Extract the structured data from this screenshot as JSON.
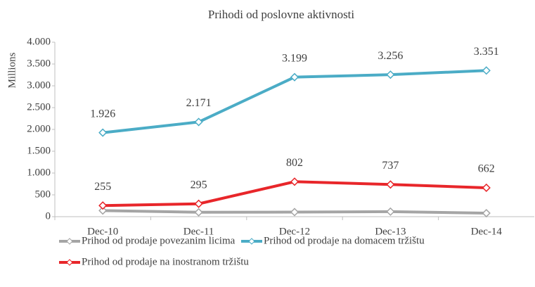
{
  "chart_data": {
    "type": "line",
    "title": "Prihodi od poslovne aktivnosti",
    "y_label": "Millions",
    "categories": [
      "Dec-10",
      "Dec-11",
      "Dec-12",
      "Dec-13",
      "Dec-14"
    ],
    "series": [
      {
        "name": "Prihod od prodaje povezanim licima",
        "color": "#a5a5a5",
        "values": [
          140,
          100,
          105,
          115,
          80
        ]
      },
      {
        "name": "Prihod od prodaje na domacem tržištu",
        "color": "#4bacc6",
        "values": [
          1926,
          2171,
          3199,
          3256,
          3351
        ],
        "value_labels": [
          "1.926",
          "2.171",
          "3.199",
          "3.256",
          "3.351"
        ]
      },
      {
        "name": "Prihod od prodaje na inostranom tržištu",
        "color": "#e8262a",
        "values": [
          255,
          295,
          802,
          737,
          662
        ]
      }
    ],
    "ylim": [
      0,
      4000
    ],
    "yticks": [
      0,
      {
        "value": 500,
        "label": "500"
      },
      {
        "value": 1000,
        "label": "1.000"
      },
      {
        "value": 1500,
        "label": "1.500"
      },
      {
        "value": 2000,
        "label": "2.000"
      },
      {
        "value": 2500,
        "label": "2.500"
      },
      {
        "value": 3000,
        "label": "3.000"
      },
      {
        "value": 3500,
        "label": "3.500"
      },
      {
        "value": 4000,
        "label": "4.000"
      }
    ]
  }
}
